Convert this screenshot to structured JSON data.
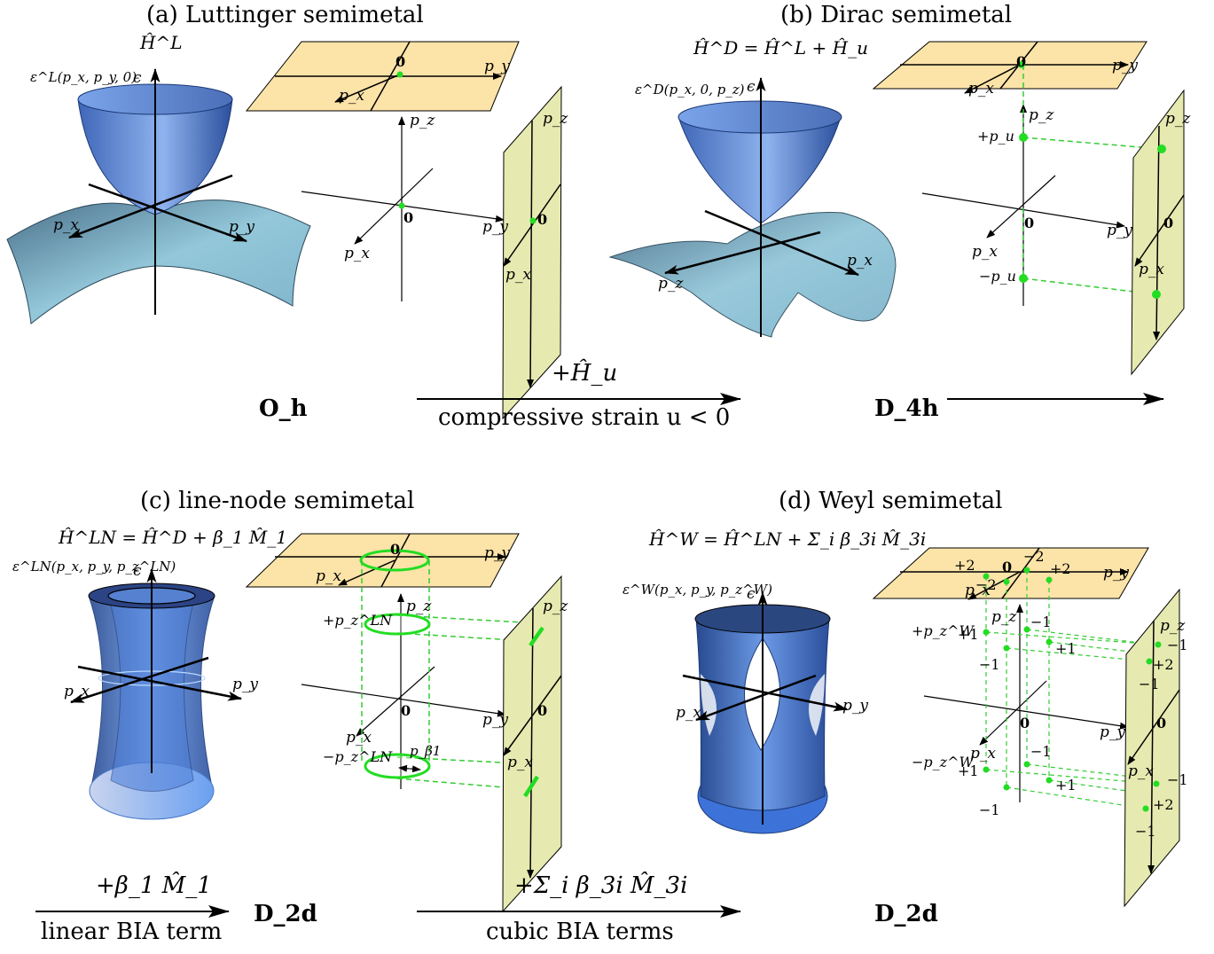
{
  "panels": {
    "a": {
      "title": "(a) Luttinger semimetal",
      "hamiltonian": "Ĥ^L",
      "dispersion_label": "ε^L(p_x, p_y, 0)",
      "energy_axis": "ϵ",
      "axes_3d": [
        "p_x",
        "p_y"
      ],
      "schematic": {
        "top_plane": [
          "p_x",
          "p_y",
          "0"
        ],
        "side_plane": [
          "p_z",
          "p_x",
          "0"
        ],
        "axes": [
          "p_z",
          "p_x",
          "p_y",
          "0"
        ]
      },
      "symmetry": "O_h"
    },
    "b": {
      "title": "(b) Dirac semimetal",
      "hamiltonian": "Ĥ^D = Ĥ^L + Ĥ_u",
      "dispersion_label": "ε^D(p_x, 0, p_z)",
      "energy_axis": "ϵ",
      "axes_3d": [
        "p_z",
        "p_x"
      ],
      "schematic": {
        "top_plane": [
          "p_x",
          "p_y",
          "0"
        ],
        "side_plane": [
          "p_z",
          "p_x",
          "0"
        ],
        "axes": [
          "p_z",
          "p_x",
          "p_y",
          "0"
        ],
        "nodes": [
          "+p_u",
          "−p_u"
        ]
      },
      "symmetry": "D_4h"
    },
    "c": {
      "title": "(c) line-node semimetal",
      "hamiltonian": "Ĥ^LN = Ĥ^D + β_1 M̂_1",
      "dispersion_label": "ε^LN(p_x, p_y, p_z^LN)",
      "energy_axis": "ϵ",
      "axes_3d": [
        "p_x",
        "p_y"
      ],
      "schematic": {
        "top_plane": [
          "p_x",
          "p_y",
          "0"
        ],
        "side_plane": [
          "p_z",
          "p_x",
          "0"
        ],
        "axes": [
          "p_z",
          "p_x",
          "p_y",
          "0"
        ],
        "nodes": [
          "+p_z^LN",
          "−p_z^LN"
        ],
        "radius_label": "p_β1"
      },
      "symmetry": "D_2d"
    },
    "d": {
      "title": "(d) Weyl semimetal",
      "hamiltonian": "Ĥ^W = Ĥ^LN + Σ_i β_3i M̂_3i",
      "dispersion_label": "ε^W(p_x, p_y, p_z^W)",
      "energy_axis": "ϵ",
      "axes_3d": [
        "p_x",
        "p_y"
      ],
      "schematic": {
        "top_plane": [
          "p_x",
          "p_y",
          "0"
        ],
        "side_plane": [
          "p_z",
          "p_x",
          "0"
        ],
        "axes": [
          "p_z",
          "p_x",
          "p_y",
          "0"
        ],
        "nodes": [
          "+p_z^W",
          "−p_z^W"
        ],
        "top_charges": [
          "+2",
          "−2",
          "−2",
          "+2"
        ],
        "upper_charges": [
          "+1",
          "−1",
          "−1",
          "+1"
        ],
        "lower_charges": [
          "+1",
          "−1",
          "−1",
          "+1"
        ],
        "side_charges_upper": [
          "−1",
          "+2",
          "−1"
        ],
        "side_charges_lower": [
          "−1",
          "+2",
          "−1"
        ]
      },
      "symmetry": "D_2d"
    }
  },
  "transitions": [
    {
      "above": "+Ĥ_u",
      "below": "compressive strain u < 0"
    },
    {
      "above": "+β_1 M̂_1",
      "below": "linear BIA term"
    },
    {
      "above": "+Σ_i β_3i M̂_3i",
      "below": "cubic BIA terms"
    }
  ],
  "colors": {
    "top_plane": "#fce3a8",
    "side_plane": "#e6eab0",
    "surface": "#6a93dc",
    "surface_light": "#a8d4e6",
    "node": "#22dd22",
    "grid_dash": "#33cc33"
  }
}
